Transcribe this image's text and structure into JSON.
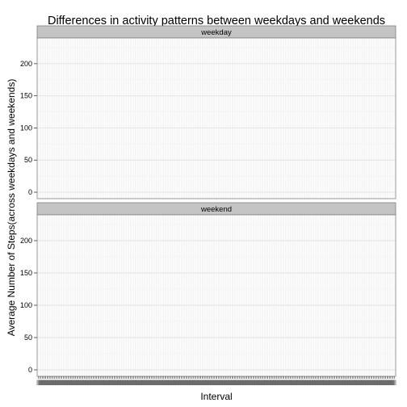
{
  "chart_data": {
    "type": "line",
    "title": "Differences in activity patterns between weekdays and weekends",
    "xlabel": "Interval",
    "ylabel": "Average Number of Steps(across weekdays and weekends)",
    "facets": [
      "weekday",
      "weekend"
    ],
    "facet_layout": "stacked-vertical",
    "ylim": [
      -10,
      240
    ],
    "y_ticks": [
      0,
      50,
      100,
      150,
      200
    ],
    "x_tick_count": 288,
    "x_tick_labels_overlapping": true,
    "grid": true,
    "legend": "none",
    "series": [
      {
        "facet": "weekday",
        "x": [],
        "values": []
      },
      {
        "facet": "weekend",
        "x": [],
        "values": []
      }
    ],
    "colors": {
      "panel_background": "#ffffff",
      "panel_border": "#7f7f7f",
      "grid_major": "#e3e3e3",
      "grid_minor": "#f1f1f1",
      "strip_fill": "#c4c4c4",
      "strip_border": "#7f7f7f",
      "tick_color": "#333333"
    }
  }
}
